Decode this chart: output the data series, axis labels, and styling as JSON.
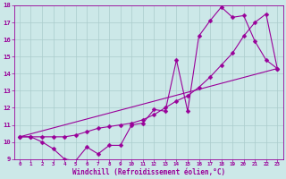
{
  "title": "",
  "xlabel": "Windchill (Refroidissement éolien,°C)",
  "bg_color": "#cce8e8",
  "grid_color": "#aacccc",
  "line_color": "#990099",
  "line1_x": [
    0,
    1,
    2,
    3,
    4,
    5,
    5,
    6,
    7,
    8,
    9,
    10,
    11,
    12,
    13,
    14,
    15,
    16,
    17,
    18,
    19,
    20,
    21,
    22,
    23
  ],
  "line1_y": [
    10.3,
    10.3,
    10.0,
    9.6,
    9.0,
    8.9,
    8.9,
    9.7,
    9.3,
    9.8,
    9.8,
    11.0,
    11.1,
    11.9,
    11.8,
    14.8,
    11.8,
    16.2,
    17.1,
    17.9,
    17.3,
    17.4,
    15.9,
    14.8,
    14.3
  ],
  "line2_x": [
    0,
    1,
    2,
    3,
    4,
    5,
    6,
    7,
    8,
    9,
    10,
    11,
    12,
    13,
    14,
    15,
    16,
    17,
    18,
    19,
    20,
    21,
    22,
    23
  ],
  "line2_y": [
    10.3,
    10.3,
    10.3,
    10.3,
    10.3,
    10.4,
    10.6,
    10.8,
    10.9,
    11.0,
    11.1,
    11.3,
    11.6,
    12.0,
    12.4,
    12.7,
    13.2,
    13.8,
    14.5,
    15.2,
    16.2,
    17.0,
    17.5,
    14.3
  ],
  "line3_x": [
    0,
    23
  ],
  "line3_y": [
    10.3,
    14.3
  ],
  "xlim": [
    -0.5,
    23.5
  ],
  "ylim": [
    9,
    18
  ],
  "xticks": [
    0,
    1,
    2,
    3,
    4,
    5,
    6,
    7,
    8,
    9,
    10,
    11,
    12,
    13,
    14,
    15,
    16,
    17,
    18,
    19,
    20,
    21,
    22,
    23
  ],
  "yticks": [
    9,
    10,
    11,
    12,
    13,
    14,
    15,
    16,
    17,
    18
  ],
  "markersize": 2.5
}
